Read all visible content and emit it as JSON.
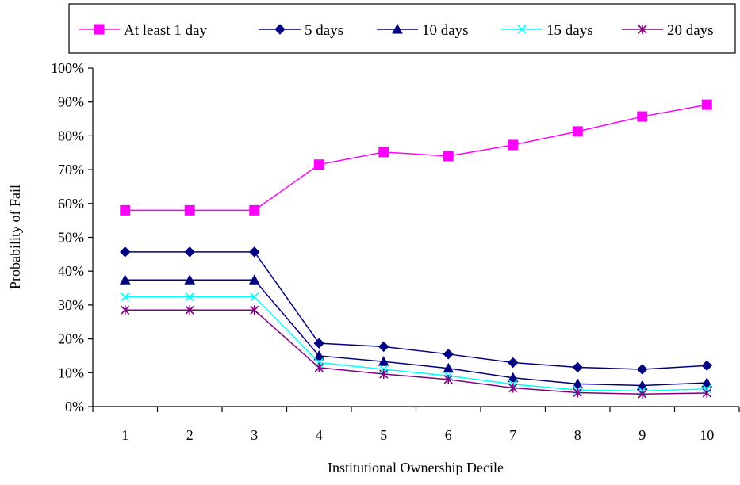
{
  "chart_data": {
    "type": "line",
    "title": "",
    "xlabel": "Institutional Ownership Decile",
    "ylabel": "Probability of Fail",
    "categories": [
      "1",
      "2",
      "3",
      "4",
      "5",
      "6",
      "7",
      "8",
      "9",
      "10"
    ],
    "ylim": [
      0,
      1
    ],
    "yticks": [
      "0%",
      "10%",
      "20%",
      "30%",
      "40%",
      "50%",
      "60%",
      "70%",
      "80%",
      "90%",
      "100%"
    ],
    "grid": false,
    "legend_position": "top",
    "series": [
      {
        "name": "At least 1 day",
        "color": "#FF00FF",
        "marker": "square",
        "values": [
          0.58,
          0.58,
          0.58,
          0.715,
          0.752,
          0.74,
          0.773,
          0.813,
          0.857,
          0.892
        ]
      },
      {
        "name": "5 days",
        "color": "#000080",
        "marker": "diamond",
        "values": [
          0.457,
          0.457,
          0.457,
          0.187,
          0.177,
          0.155,
          0.13,
          0.116,
          0.11,
          0.121
        ]
      },
      {
        "name": "10 days",
        "color": "#000080",
        "marker": "triangle",
        "values": [
          0.374,
          0.374,
          0.374,
          0.15,
          0.133,
          0.113,
          0.085,
          0.067,
          0.062,
          0.07
        ]
      },
      {
        "name": "15 days",
        "color": "#00FFFF",
        "marker": "x",
        "values": [
          0.324,
          0.324,
          0.324,
          0.13,
          0.11,
          0.091,
          0.066,
          0.049,
          0.046,
          0.052
        ]
      },
      {
        "name": "20 days",
        "color": "#800080",
        "marker": "star",
        "values": [
          0.285,
          0.285,
          0.285,
          0.115,
          0.096,
          0.08,
          0.055,
          0.041,
          0.037,
          0.04
        ]
      }
    ]
  }
}
